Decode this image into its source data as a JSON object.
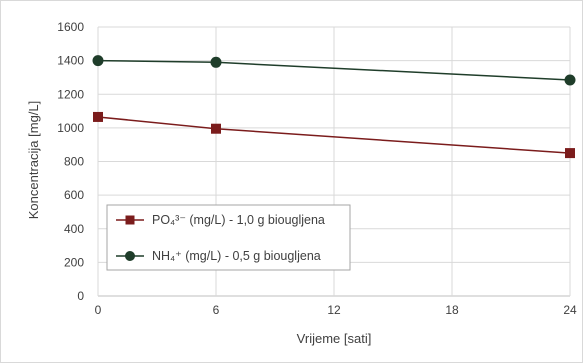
{
  "chart_data": {
    "type": "line",
    "title": "",
    "xlabel": "Vrijeme [sati]",
    "ylabel": "Koncentracija [mg/L]",
    "xlim": [
      0,
      24
    ],
    "ylim": [
      0,
      1600
    ],
    "x_ticks": [
      0,
      6,
      12,
      18,
      24
    ],
    "y_ticks": [
      0,
      200,
      400,
      600,
      800,
      1000,
      1200,
      1400,
      1600
    ],
    "grid": true,
    "legend_position": "bottom-left",
    "series": [
      {
        "name": "PO₄³⁻ (mg/L) - 1,0 g biougljena",
        "x": [
          0,
          6,
          24
        ],
        "y": [
          1065,
          995,
          850
        ],
        "color": "#7b1c1c",
        "marker": "square"
      },
      {
        "name": "NH₄⁺ (mg/L) - 0,5 g biougljena",
        "x": [
          0,
          6,
          24
        ],
        "y": [
          1400,
          1390,
          1285
        ],
        "color": "#1f3d2a",
        "marker": "circle"
      }
    ]
  }
}
